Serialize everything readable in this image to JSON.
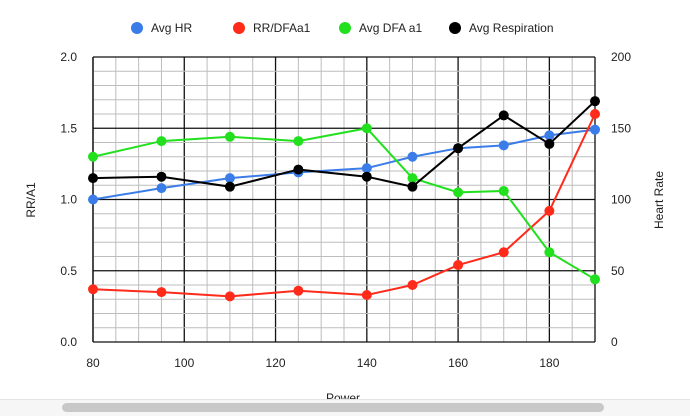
{
  "chart_data": {
    "type": "line",
    "title": "",
    "xlabel": "Power",
    "ylabel_left": "RR/A1",
    "ylabel_right": "Heart Rate",
    "x": [
      80,
      95,
      110,
      125,
      140,
      150,
      160,
      170,
      180,
      190
    ],
    "xlim": [
      80,
      190
    ],
    "xticks": [
      "80",
      "100",
      "120",
      "140",
      "160",
      "180"
    ],
    "ylim_left": [
      0,
      2
    ],
    "yticks_left": [
      "0.0",
      "0.5",
      "1.0",
      "1.5",
      "2.0"
    ],
    "ylim_right": [
      0,
      200
    ],
    "yticks_right": [
      "0",
      "50",
      "100",
      "150",
      "200"
    ],
    "grid": true,
    "legend_position": "top",
    "series": [
      {
        "name": "Avg HR",
        "color": "#3b7de8",
        "axis": "right",
        "values": [
          100,
          108,
          115,
          119,
          122,
          130,
          136,
          138,
          145,
          149
        ]
      },
      {
        "name": "RR/DFAa1",
        "color": "#ff2a1a",
        "axis": "left",
        "values": [
          0.37,
          0.35,
          0.32,
          0.36,
          0.33,
          0.4,
          0.54,
          0.63,
          0.92,
          1.6
        ]
      },
      {
        "name": "Avg DFA a1",
        "color": "#22e01e",
        "axis": "left",
        "values": [
          1.3,
          1.41,
          1.44,
          1.41,
          1.5,
          1.15,
          1.05,
          1.06,
          0.63,
          0.44
        ]
      },
      {
        "name": "Avg Respiration",
        "color": "#000000",
        "axis": "right",
        "values": [
          115,
          116,
          109,
          121,
          116,
          109,
          136,
          159,
          139,
          169
        ]
      }
    ]
  }
}
